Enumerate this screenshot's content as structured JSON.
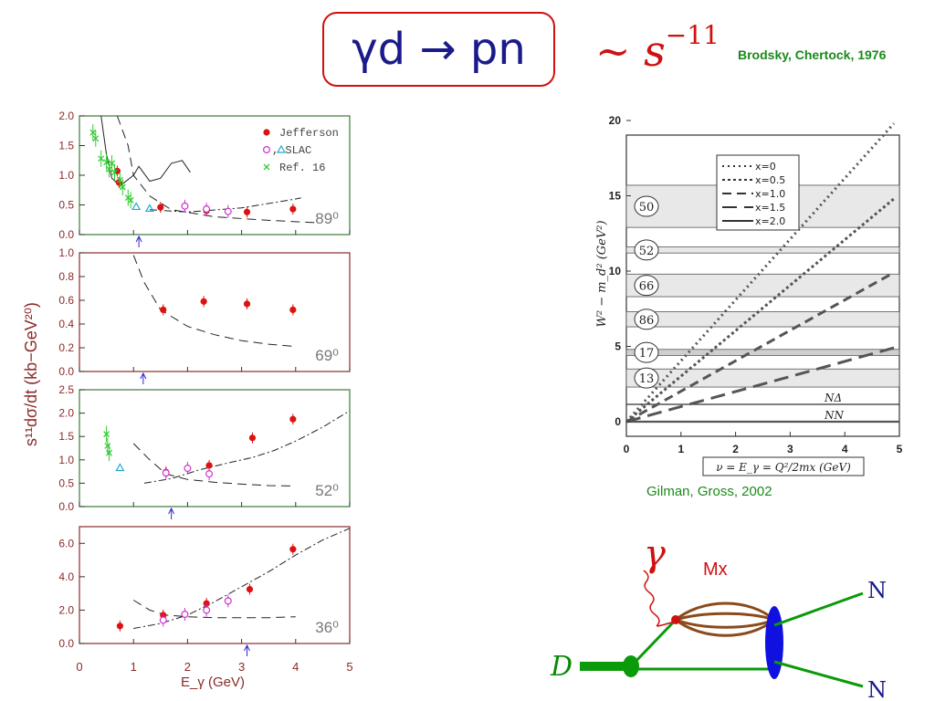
{
  "title": "γd → pn",
  "scaling": {
    "prefix": "~ s",
    "exponent": "−11"
  },
  "citations": {
    "brodsky": "Brodsky, Chertock, 1976",
    "gilman": "Gilman, Gross, 2002"
  },
  "colors": {
    "title_border": "#d01010",
    "title_text": "#1a1a8a",
    "citation": "#1a8a1a",
    "jefferson": "#dd1111",
    "slac_circle": "#cc33cc",
    "slac_triangle": "#22aacc",
    "ref16": "#33cc33",
    "panel_axis": "#8b2a2a"
  },
  "chart_data": [
    {
      "type": "scatter",
      "panel": "89°",
      "angle_label": "89⁰",
      "x_label": "E_γ (GeV)",
      "y_label": "s¹¹dσ/dt (kb−GeV²⁰)",
      "xlim": [
        0,
        5
      ],
      "ylim": [
        0,
        2.0
      ],
      "y_ticks": [
        "0.0",
        "0.5",
        "1.0",
        "1.5",
        "2.0"
      ],
      "legend": [
        "Jefferson",
        "○,△ SLAC",
        "Ref. 16"
      ],
      "legend_placement": "top-right",
      "series": [
        {
          "name": "Jefferson",
          "marker": "filled-circle",
          "points": [
            [
              0.7,
              1.07
            ],
            [
              0.73,
              0.88
            ],
            [
              1.5,
              0.46
            ],
            [
              2.35,
              0.4
            ],
            [
              3.1,
              0.38
            ],
            [
              3.95,
              0.43
            ]
          ]
        },
        {
          "name": "SLAC",
          "marker": "open-circle",
          "points": [
            [
              1.95,
              0.48
            ],
            [
              2.35,
              0.43
            ],
            [
              2.75,
              0.39
            ]
          ]
        },
        {
          "name": "SLAC",
          "marker": "open-triangle",
          "points": [
            [
              1.05,
              0.47
            ],
            [
              1.3,
              0.44
            ]
          ]
        },
        {
          "name": "Ref. 16",
          "marker": "cross",
          "points": [
            [
              0.25,
              1.72
            ],
            [
              0.3,
              1.62
            ],
            [
              0.4,
              1.28
            ],
            [
              0.5,
              1.22
            ],
            [
              0.55,
              1.1
            ],
            [
              0.6,
              1.2
            ],
            [
              0.65,
              1.05
            ],
            [
              0.75,
              0.92
            ],
            [
              0.8,
              0.8
            ],
            [
              0.9,
              0.62
            ],
            [
              0.95,
              0.58
            ]
          ]
        }
      ],
      "curves": [
        {
          "style": "dashed",
          "points": [
            [
              0.7,
              2.0
            ],
            [
              0.9,
              1.5
            ],
            [
              1.0,
              1.0
            ],
            [
              1.3,
              0.65
            ],
            [
              1.7,
              0.42
            ],
            [
              2.5,
              0.3
            ],
            [
              3.5,
              0.24
            ],
            [
              4.4,
              0.2
            ]
          ]
        },
        {
          "style": "solid",
          "points": [
            [
              0.4,
              2.0
            ],
            [
              0.5,
              1.35
            ],
            [
              0.6,
              0.95
            ],
            [
              0.75,
              0.82
            ],
            [
              1.0,
              1.0
            ],
            [
              1.1,
              1.15
            ],
            [
              1.3,
              0.9
            ],
            [
              1.5,
              0.95
            ],
            [
              1.7,
              1.2
            ],
            [
              1.9,
              1.25
            ],
            [
              2.05,
              1.05
            ]
          ]
        },
        {
          "style": "dash-dot",
          "points": [
            [
              1.3,
              0.42
            ],
            [
              2.0,
              0.38
            ],
            [
              3.0,
              0.45
            ],
            [
              4.0,
              0.6
            ],
            [
              4.1,
              0.62
            ]
          ]
        }
      ],
      "arrow_x": 1.1
    },
    {
      "type": "scatter",
      "panel": "69°",
      "angle_label": "69⁰",
      "xlim": [
        0,
        5
      ],
      "ylim": [
        0,
        1.0
      ],
      "y_ticks": [
        "0.0",
        "0.2",
        "0.4",
        "0.6",
        "0.8",
        "1.0"
      ],
      "series": [
        {
          "name": "Jefferson",
          "marker": "filled-circle",
          "points": [
            [
              1.55,
              0.52
            ],
            [
              2.3,
              0.59
            ],
            [
              3.1,
              0.57
            ],
            [
              3.95,
              0.52
            ]
          ]
        }
      ],
      "curves": [
        {
          "style": "dashed",
          "points": [
            [
              1.0,
              0.98
            ],
            [
              1.2,
              0.75
            ],
            [
              1.5,
              0.52
            ],
            [
              2.0,
              0.38
            ],
            [
              2.5,
              0.31
            ],
            [
              3.0,
              0.26
            ],
            [
              3.5,
              0.23
            ],
            [
              4.0,
              0.21
            ]
          ]
        }
      ],
      "arrow_x": 1.18
    },
    {
      "type": "scatter",
      "panel": "52°",
      "angle_label": "52⁰",
      "xlim": [
        0,
        5
      ],
      "ylim": [
        0,
        2.5
      ],
      "y_ticks": [
        "0.0",
        "0.5",
        "1.0",
        "1.5",
        "2.0",
        "2.5"
      ],
      "series": [
        {
          "name": "Jefferson",
          "marker": "filled-circle",
          "points": [
            [
              1.6,
              0.74
            ],
            [
              2.4,
              0.88
            ],
            [
              3.2,
              1.47
            ],
            [
              3.95,
              1.87
            ]
          ]
        },
        {
          "name": "SLAC",
          "marker": "open-circle",
          "points": [
            [
              1.6,
              0.72
            ],
            [
              2.0,
              0.82
            ],
            [
              2.4,
              0.7
            ]
          ]
        },
        {
          "name": "SLAC",
          "marker": "open-triangle",
          "points": [
            [
              0.75,
              0.83
            ]
          ]
        },
        {
          "name": "Ref. 16",
          "marker": "cross",
          "points": [
            [
              0.5,
              1.55
            ],
            [
              0.52,
              1.3
            ],
            [
              0.55,
              1.15
            ]
          ]
        }
      ],
      "curves": [
        {
          "style": "dashed",
          "points": [
            [
              1.0,
              1.35
            ],
            [
              1.3,
              1.0
            ],
            [
              1.6,
              0.7
            ],
            [
              2.0,
              0.58
            ],
            [
              2.5,
              0.52
            ],
            [
              3.0,
              0.48
            ],
            [
              3.5,
              0.45
            ],
            [
              4.0,
              0.44
            ]
          ]
        },
        {
          "style": "dash-dot",
          "points": [
            [
              1.2,
              0.5
            ],
            [
              1.7,
              0.6
            ],
            [
              2.2,
              0.78
            ],
            [
              2.7,
              0.92
            ],
            [
              3.2,
              1.05
            ],
            [
              3.6,
              1.2
            ],
            [
              4.0,
              1.4
            ],
            [
              4.5,
              1.7
            ],
            [
              5.0,
              2.05
            ]
          ]
        }
      ],
      "arrow_x": 1.7
    },
    {
      "type": "scatter",
      "panel": "36°",
      "angle_label": "36⁰",
      "xlim": [
        0,
        5
      ],
      "ylim": [
        0,
        7.0
      ],
      "y_ticks": [
        "0.0",
        "2.0",
        "4.0",
        "6.0"
      ],
      "series": [
        {
          "name": "Jefferson",
          "marker": "filled-circle",
          "points": [
            [
              0.75,
              1.05
            ],
            [
              1.55,
              1.7
            ],
            [
              2.35,
              2.4
            ],
            [
              3.15,
              3.25
            ],
            [
              3.95,
              5.65
            ]
          ]
        },
        {
          "name": "SLAC",
          "marker": "open-circle",
          "points": [
            [
              1.55,
              1.4
            ],
            [
              1.95,
              1.75
            ],
            [
              2.35,
              2.0
            ],
            [
              2.75,
              2.55
            ]
          ]
        }
      ],
      "curves": [
        {
          "style": "dashed",
          "points": [
            [
              1.0,
              2.6
            ],
            [
              1.3,
              2.0
            ],
            [
              1.6,
              1.7
            ],
            [
              2.0,
              1.6
            ],
            [
              2.5,
              1.55
            ],
            [
              3.0,
              1.55
            ],
            [
              3.5,
              1.55
            ],
            [
              4.0,
              1.6
            ]
          ]
        },
        {
          "style": "dash-dot",
          "points": [
            [
              1.0,
              0.9
            ],
            [
              1.5,
              1.2
            ],
            [
              2.0,
              1.7
            ],
            [
              2.5,
              2.5
            ],
            [
              3.0,
              3.4
            ],
            [
              3.5,
              4.3
            ],
            [
              4.0,
              5.3
            ],
            [
              4.5,
              6.2
            ],
            [
              5.0,
              6.9
            ]
          ]
        }
      ],
      "arrow_x": 3.1,
      "x_ticks": [
        "0",
        "1",
        "2",
        "3",
        "4",
        "5"
      ]
    },
    {
      "type": "line",
      "panel": "Gilman-Gross resonance plot",
      "xlabel": "ν = E_γ = Q²/2mx (GeV)",
      "ylabel": "W² − m_d² (GeV²)",
      "xlim": [
        0,
        5
      ],
      "ylim": [
        0,
        20
      ],
      "x_ticks": [
        "0",
        "1",
        "2",
        "3",
        "4",
        "5"
      ],
      "y_ticks": [
        "0",
        "5",
        "10",
        "15",
        "20"
      ],
      "legend": [
        "x=0",
        "x=0.5",
        "x=1.0",
        "x=1.5",
        "x=2.0"
      ],
      "legend_placement": "top-center",
      "series": [
        {
          "name": "x=0",
          "style": "dotted",
          "points": [
            [
              0,
              0
            ],
            [
              4.9,
              19.8
            ]
          ]
        },
        {
          "name": "x=0.5",
          "style": "dotted-dense",
          "points": [
            [
              0,
              0
            ],
            [
              4.9,
              14.8
            ]
          ]
        },
        {
          "name": "x=1.0",
          "style": "dashed",
          "points": [
            [
              0,
              0
            ],
            [
              4.9,
              9.9
            ]
          ]
        },
        {
          "name": "x=1.5",
          "style": "long-dashed",
          "points": [
            [
              0,
              0
            ],
            [
              4.9,
              4.9
            ]
          ]
        },
        {
          "name": "x=2.0",
          "style": "solid",
          "points": [
            [
              0,
              0
            ],
            [
              5,
              0
            ]
          ]
        }
      ],
      "bands": [
        {
          "label": "50",
          "y0": 12.9,
          "y1": 15.7
        },
        {
          "label": "52",
          "y0": 11.2,
          "y1": 11.6
        },
        {
          "label": "66",
          "y0": 8.3,
          "y1": 9.8
        },
        {
          "label": "86",
          "y0": 6.3,
          "y1": 7.3
        },
        {
          "label": "17",
          "y0": 4.4,
          "y1": 4.8,
          "hatched": true
        },
        {
          "label": "13",
          "y0": 2.3,
          "y1": 3.5
        }
      ],
      "thresholds": [
        {
          "label": "NΔ",
          "y": 1.15
        },
        {
          "label": "NN",
          "y": 0.0
        }
      ]
    }
  ],
  "diagram": {
    "gamma": "γ",
    "mx": "Mx",
    "d": "D",
    "n_top": "N",
    "n_bottom": "N"
  }
}
